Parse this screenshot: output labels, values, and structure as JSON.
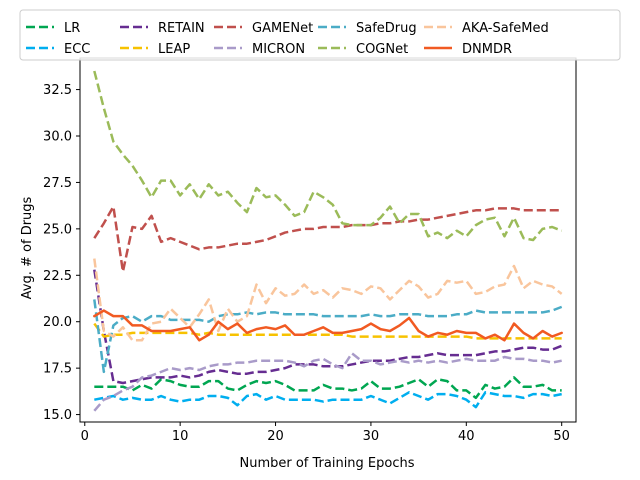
{
  "chart_data": {
    "type": "line",
    "title": "",
    "xlabel": "Number of Training Epochs",
    "ylabel": "Avg. # of Drugs",
    "xlim": [
      -0.5,
      51.5
    ],
    "ylim": [
      14.6,
      34.2
    ],
    "xticks": [
      0,
      10,
      20,
      30,
      40,
      50
    ],
    "yticks": [
      15.0,
      17.5,
      20.0,
      22.5,
      25.0,
      27.5,
      30.0,
      32.5
    ],
    "ytick_labels": [
      "15.0",
      "17.5",
      "20.0",
      "22.5",
      "25.0",
      "27.5",
      "30.0",
      "32.5"
    ],
    "grid": false,
    "legend_position": "top, above plot",
    "x": [
      1,
      2,
      3,
      4,
      5,
      6,
      7,
      8,
      9,
      10,
      11,
      12,
      13,
      14,
      15,
      16,
      17,
      18,
      19,
      20,
      21,
      22,
      23,
      24,
      25,
      26,
      27,
      28,
      29,
      30,
      31,
      32,
      33,
      34,
      35,
      36,
      37,
      38,
      39,
      40,
      41,
      42,
      43,
      44,
      45,
      46,
      47,
      48,
      49,
      50
    ],
    "series": [
      {
        "name": "LR",
        "color": "#00a651",
        "dash": "dashed",
        "width": 2.5,
        "values": [
          16.5,
          16.5,
          16.5,
          16.5,
          16.3,
          16.6,
          16.4,
          16.9,
          16.8,
          16.6,
          16.5,
          16.5,
          16.8,
          16.8,
          16.4,
          16.3,
          16.6,
          16.8,
          16.7,
          16.8,
          16.6,
          16.3,
          16.3,
          16.3,
          16.6,
          16.4,
          16.4,
          16.3,
          16.4,
          16.8,
          16.4,
          16.4,
          16.5,
          16.7,
          16.9,
          16.5,
          16.9,
          16.8,
          16.3,
          16.3,
          15.9,
          16.6,
          16.4,
          16.5,
          17.0,
          16.5,
          16.5,
          16.6,
          16.3,
          16.3
        ]
      },
      {
        "name": "ECC",
        "color": "#00aeef",
        "dash": "dashed",
        "width": 2.5,
        "values": [
          15.8,
          15.9,
          16.0,
          15.8,
          15.9,
          15.8,
          15.8,
          16.0,
          15.8,
          15.7,
          15.8,
          15.8,
          16.0,
          16.0,
          15.9,
          15.5,
          16.0,
          16.1,
          15.8,
          16.0,
          15.8,
          15.8,
          15.8,
          15.8,
          15.7,
          15.8,
          15.8,
          15.8,
          15.8,
          16.0,
          15.8,
          15.6,
          15.9,
          16.2,
          16.0,
          15.8,
          16.1,
          16.1,
          16.0,
          15.8,
          15.4,
          16.2,
          16.1,
          16.0,
          16.0,
          15.9,
          16.1,
          16.1,
          16.0,
          16.1
        ]
      },
      {
        "name": "RETAIN",
        "color": "#662d91",
        "dash": "dashed",
        "width": 2.5,
        "values": [
          22.8,
          19.5,
          16.8,
          16.7,
          16.8,
          16.9,
          17.0,
          17.0,
          17.0,
          17.1,
          17.0,
          17.1,
          17.3,
          17.4,
          17.3,
          17.2,
          17.2,
          17.3,
          17.3,
          17.4,
          17.5,
          17.7,
          17.7,
          17.7,
          17.6,
          17.6,
          17.6,
          17.7,
          17.8,
          17.9,
          17.9,
          17.9,
          18.0,
          18.1,
          18.1,
          18.2,
          18.3,
          18.2,
          18.2,
          18.2,
          18.2,
          18.3,
          18.4,
          18.4,
          18.5,
          18.6,
          18.6,
          18.5,
          18.5,
          18.7
        ]
      },
      {
        "name": "LEAP",
        "color": "#f7c200",
        "dash": "dashed",
        "width": 2.5,
        "values": [
          19.9,
          19.2,
          19.3,
          19.3,
          19.4,
          19.4,
          19.4,
          19.4,
          19.4,
          19.4,
          19.4,
          19.3,
          19.4,
          19.3,
          19.3,
          19.3,
          19.3,
          19.3,
          19.3,
          19.3,
          19.3,
          19.3,
          19.3,
          19.3,
          19.3,
          19.3,
          19.3,
          19.2,
          19.2,
          19.2,
          19.2,
          19.2,
          19.2,
          19.2,
          19.2,
          19.2,
          19.2,
          19.2,
          19.2,
          19.2,
          19.1,
          19.1,
          19.1,
          19.1,
          19.1,
          19.1,
          19.1,
          19.1,
          19.1,
          19.1
        ]
      },
      {
        "name": "GAMENet",
        "color": "#c0504d",
        "dash": "dashed",
        "width": 2.5,
        "values": [
          24.5,
          25.3,
          26.2,
          22.7,
          25.1,
          25.0,
          25.7,
          24.3,
          24.5,
          24.3,
          24.1,
          23.9,
          24.0,
          24.0,
          24.1,
          24.2,
          24.2,
          24.3,
          24.4,
          24.6,
          24.8,
          24.9,
          25.0,
          25.0,
          25.1,
          25.1,
          25.1,
          25.2,
          25.2,
          25.2,
          25.3,
          25.3,
          25.4,
          25.4,
          25.5,
          25.5,
          25.6,
          25.7,
          25.8,
          25.9,
          26.0,
          26.0,
          26.1,
          26.1,
          26.1,
          26.0,
          26.0,
          26.0,
          26.0,
          26.0
        ]
      },
      {
        "name": "MICRON",
        "color": "#a99bc9",
        "dash": "dashed",
        "width": 2.5,
        "values": [
          15.2,
          15.8,
          16.0,
          16.3,
          16.5,
          17.0,
          17.1,
          17.3,
          17.5,
          17.4,
          17.5,
          17.4,
          17.6,
          17.7,
          17.7,
          17.8,
          17.8,
          17.9,
          17.9,
          17.9,
          17.9,
          17.8,
          17.6,
          17.9,
          18.0,
          17.7,
          17.5,
          18.3,
          17.9,
          17.9,
          17.7,
          17.8,
          17.9,
          17.8,
          17.9,
          17.8,
          17.9,
          17.8,
          17.9,
          18.0,
          17.9,
          17.9,
          17.9,
          18.1,
          18.0,
          18.0,
          17.9,
          17.9,
          17.8,
          17.9
        ]
      },
      {
        "name": "SafeDrug",
        "color": "#4bacc6",
        "dash": "dashed",
        "width": 2.5,
        "values": [
          21.2,
          17.3,
          19.8,
          20.2,
          20.3,
          20.0,
          20.3,
          20.3,
          20.1,
          20.1,
          20.1,
          20.1,
          20.0,
          20.3,
          20.4,
          20.4,
          20.5,
          20.4,
          20.5,
          20.5,
          20.4,
          20.4,
          20.4,
          20.4,
          20.3,
          20.3,
          20.3,
          20.3,
          20.3,
          20.4,
          20.3,
          20.3,
          20.4,
          20.4,
          20.4,
          20.3,
          20.3,
          20.3,
          20.4,
          20.4,
          20.6,
          20.5,
          20.5,
          20.5,
          20.5,
          20.5,
          20.5,
          20.5,
          20.6,
          20.8
        ]
      },
      {
        "name": "COGNet",
        "color": "#9bbb59",
        "dash": "dashed",
        "width": 2.5,
        "values": [
          33.5,
          31.5,
          29.7,
          29.0,
          28.4,
          27.6,
          26.7,
          27.6,
          27.6,
          26.8,
          27.4,
          26.6,
          27.4,
          26.8,
          27.0,
          26.4,
          25.9,
          27.2,
          26.7,
          26.8,
          26.3,
          25.7,
          25.9,
          27.0,
          26.7,
          26.3,
          25.3,
          25.2,
          25.2,
          25.2,
          25.6,
          26.2,
          25.3,
          25.8,
          25.8,
          24.6,
          24.8,
          24.5,
          24.9,
          24.6,
          25.2,
          25.5,
          25.6,
          24.6,
          25.6,
          24.5,
          24.4,
          25.0,
          25.1,
          24.9
        ]
      },
      {
        "name": "AKA-SafeMed",
        "color": "#f9c59c",
        "dash": "dashed",
        "width": 2.5,
        "values": [
          23.4,
          19.5,
          19.2,
          19.7,
          19.0,
          19.0,
          19.9,
          20.0,
          20.7,
          20.2,
          19.7,
          20.4,
          21.2,
          19.5,
          20.7,
          20.0,
          20.3,
          22.0,
          21.0,
          21.8,
          21.4,
          21.5,
          22.0,
          21.5,
          21.7,
          21.3,
          21.8,
          21.7,
          21.5,
          21.9,
          21.8,
          21.2,
          21.7,
          22.2,
          21.9,
          21.3,
          21.5,
          22.2,
          22.1,
          22.2,
          21.5,
          21.6,
          21.9,
          22.0,
          23.0,
          21.8,
          22.2,
          22.0,
          21.9,
          21.5
        ]
      },
      {
        "name": "DNMDR",
        "color": "#f15a22",
        "dash": "solid",
        "width": 2.5,
        "values": [
          20.3,
          20.6,
          20.3,
          20.3,
          19.8,
          19.8,
          19.5,
          19.5,
          19.5,
          19.6,
          19.7,
          19.0,
          19.3,
          20.0,
          19.6,
          19.9,
          19.4,
          19.6,
          19.7,
          19.6,
          19.8,
          19.3,
          19.3,
          19.5,
          19.7,
          19.4,
          19.4,
          19.5,
          19.6,
          19.9,
          19.6,
          19.5,
          19.8,
          20.2,
          19.5,
          19.2,
          19.4,
          19.3,
          19.5,
          19.4,
          19.4,
          19.1,
          19.3,
          19.0,
          19.9,
          19.4,
          19.1,
          19.5,
          19.2,
          19.4
        ]
      }
    ]
  }
}
